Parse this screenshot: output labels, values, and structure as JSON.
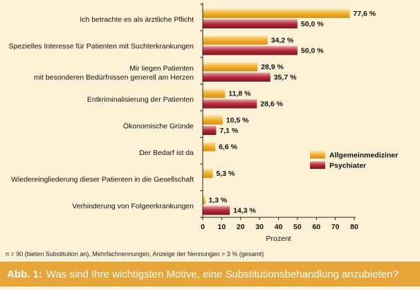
{
  "chart_data": {
    "type": "bar",
    "orientation": "horizontal",
    "categories": [
      [
        "Ich betrachte es als ärztliche Pflicht"
      ],
      [
        "Spezielles Interesse für Patienten mit Suchterkrankungen"
      ],
      [
        "Mir liegen Patienten",
        "mit besonderen Bedürfnissen generell am Herzen"
      ],
      [
        "Entkriminalisierung der Patienten"
      ],
      [
        "Ökonomische Gründe"
      ],
      [
        "Der Bedarf ist da"
      ],
      [
        "Wiedereingliederung dieser Patienten in die Gesellschaft"
      ],
      [
        "Verhinderung von Folgeerkrankungen"
      ]
    ],
    "series": [
      {
        "name": "Allgemeinmediziner",
        "color": "#f0b030",
        "values": [
          77.6,
          34.2,
          28.9,
          11.8,
          10.5,
          6.6,
          5.3,
          1.3
        ],
        "labels": [
          "77,6 %",
          "34,2 %",
          "28,9 %",
          "11,8 %",
          "10,5 %",
          "6,6 %",
          "5,3 %",
          "1,3 %"
        ]
      },
      {
        "name": "Psychiater",
        "color": "#b42a3a",
        "values": [
          50.0,
          50.0,
          35.7,
          28.6,
          7.1,
          null,
          null,
          14.3
        ],
        "labels": [
          "50,0 %",
          "50,0 %",
          "35,7 %",
          "28,6 %",
          "7,1 %",
          null,
          null,
          "14,3 %"
        ]
      }
    ],
    "x_ticks": [
      0,
      10,
      20,
      30,
      40,
      50,
      60,
      70,
      80
    ],
    "xlim": [
      0,
      80
    ],
    "xlabel": "Prozent",
    "grid": false,
    "legend_position": "right"
  },
  "footnote": "n = 90 (bieten Substitution an), Mehrfachnennungen, Anzeige der Nennungen > 3 % (gesamt)",
  "caption": {
    "prefix": "Abb. 1:",
    "text": "Was sind Ihre wichtigsten Motive, eine Substitutionsbehandlung anzubieten?",
    "background": "#e8a63a"
  }
}
